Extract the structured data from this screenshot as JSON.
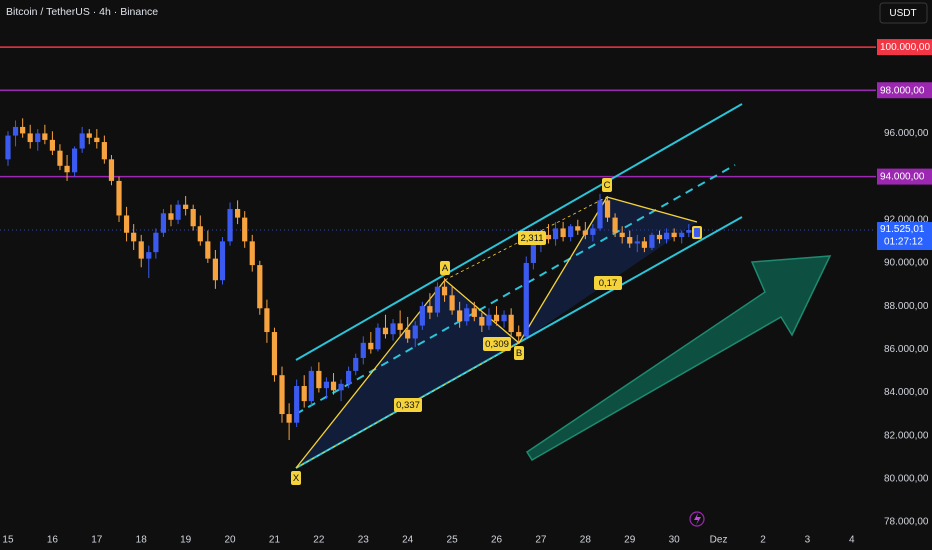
{
  "chart_data": {
    "type": "candlestick",
    "title": "Bitcoin / TetherUS · 4h · Binance",
    "currency_button": "USDT",
    "up_color": "#3b5bf0",
    "down_color": "#f7a440",
    "xlim": [
      14.82,
      34.41
    ],
    "ylim": [
      77630,
      102180
    ],
    "xticks": [
      15,
      16,
      17,
      18,
      19,
      20,
      21,
      22,
      23,
      24,
      25,
      26,
      27,
      28,
      29,
      30,
      {
        "value": 31,
        "label": "Dez"
      },
      {
        "value": 32,
        "label": "2"
      },
      {
        "value": 33,
        "label": "3"
      },
      {
        "value": 34,
        "label": "4"
      }
    ],
    "yticks": [
      {
        "value": 96000,
        "label": "96.000,00"
      },
      {
        "value": 92000,
        "label": "92.000,00"
      },
      {
        "value": 90000,
        "label": "90.000,00"
      },
      {
        "value": 88000,
        "label": "88.000,00"
      },
      {
        "value": 86000,
        "label": "86.000,00"
      },
      {
        "value": 84000,
        "label": "84.000,00"
      },
      {
        "value": 82000,
        "label": "82.000,00"
      },
      {
        "value": 80000,
        "label": "80.000,00"
      },
      {
        "value": 78000,
        "label": "78.000,00"
      }
    ],
    "grid": false,
    "levels": [
      {
        "value": 100000,
        "label": "100.000,00",
        "color": "#f23645"
      },
      {
        "value": 98000,
        "label": "98.000,00",
        "color": "#9c27b0"
      },
      {
        "value": 94000,
        "label": "94.000,00",
        "color": "#9c27b0"
      }
    ],
    "last_price": {
      "value": 91525.01,
      "label": "91.525,01"
    },
    "countdown": "01:27:12",
    "pattern_points": [
      "X",
      "A",
      "B",
      "C"
    ],
    "pattern_ratios": [
      "0,337",
      "0,309",
      "2,311",
      "0,17"
    ],
    "x": [
      15,
      15.17,
      15.33,
      15.5,
      15.67,
      15.83,
      16,
      16.17,
      16.33,
      16.5,
      16.67,
      16.83,
      17,
      17.17,
      17.33,
      17.5,
      17.67,
      17.83,
      18,
      18.17,
      18.33,
      18.5,
      18.67,
      18.83,
      19,
      19.17,
      19.33,
      19.5,
      19.67,
      19.83,
      20,
      20.17,
      20.33,
      20.5,
      20.67,
      20.83,
      21,
      21.17,
      21.33,
      21.5,
      21.67,
      21.83,
      22,
      22.17,
      22.33,
      22.5,
      22.67,
      22.83,
      23,
      23.17,
      23.33,
      23.5,
      23.67,
      23.83,
      24,
      24.17,
      24.33,
      24.5,
      24.67,
      24.83,
      25,
      25.17,
      25.33,
      25.5,
      25.67,
      25.83,
      26,
      26.17,
      26.33,
      26.5,
      26.67,
      26.83,
      27,
      27.17,
      27.33,
      27.5,
      27.67,
      27.83,
      28,
      28.17,
      28.33,
      28.5,
      28.67,
      28.83,
      29,
      29.17,
      29.33,
      29.5,
      29.67,
      29.83,
      30,
      30.17,
      30.33
    ],
    "candles": [
      [
        94800,
        96100,
        94500,
        95900
      ],
      [
        95900,
        96600,
        95400,
        96300
      ],
      [
        96300,
        96700,
        95800,
        96000
      ],
      [
        96000,
        96400,
        95300,
        95600
      ],
      [
        95600,
        96200,
        95200,
        96000
      ],
      [
        96000,
        96400,
        95500,
        95700
      ],
      [
        95700,
        96100,
        95000,
        95200
      ],
      [
        95200,
        95500,
        94300,
        94500
      ],
      [
        94500,
        95000,
        93800,
        94200
      ],
      [
        94200,
        95400,
        94000,
        95300
      ],
      [
        95300,
        96300,
        95100,
        96000
      ],
      [
        96000,
        96200,
        95500,
        95800
      ],
      [
        95800,
        96200,
        95300,
        95600
      ],
      [
        95600,
        95900,
        94600,
        94800
      ],
      [
        94800,
        95000,
        93600,
        93800
      ],
      [
        93800,
        94000,
        91900,
        92200
      ],
      [
        92200,
        92600,
        91000,
        91400
      ],
      [
        91400,
        91800,
        90600,
        91000
      ],
      [
        91000,
        91300,
        89800,
        90200
      ],
      [
        90200,
        90800,
        89300,
        90500
      ],
      [
        90500,
        91600,
        90200,
        91400
      ],
      [
        91400,
        92500,
        91200,
        92300
      ],
      [
        92300,
        92700,
        91700,
        92000
      ],
      [
        92000,
        92900,
        91800,
        92700
      ],
      [
        92700,
        93100,
        92200,
        92500
      ],
      [
        92500,
        92700,
        91500,
        91700
      ],
      [
        91700,
        92200,
        90800,
        91000
      ],
      [
        91000,
        91500,
        90000,
        90200
      ],
      [
        90200,
        90600,
        88800,
        89200
      ],
      [
        89200,
        91200,
        89000,
        91000
      ],
      [
        91000,
        92800,
        90800,
        92500
      ],
      [
        92500,
        92900,
        91800,
        92100
      ],
      [
        92100,
        92400,
        90700,
        91000
      ],
      [
        91000,
        91300,
        89600,
        89900
      ],
      [
        89900,
        90100,
        87600,
        87900
      ],
      [
        87900,
        88300,
        86300,
        86800
      ],
      [
        86800,
        87000,
        84500,
        84800
      ],
      [
        84800,
        85200,
        82600,
        83000
      ],
      [
        83000,
        83500,
        81800,
        82600
      ],
      [
        82600,
        84600,
        82400,
        84300
      ],
      [
        84300,
        84800,
        83300,
        83600
      ],
      [
        83600,
        85200,
        83400,
        85000
      ],
      [
        85000,
        85400,
        84000,
        84200
      ],
      [
        84200,
        84700,
        83700,
        84500
      ],
      [
        84500,
        84900,
        83900,
        84100
      ],
      [
        84100,
        84600,
        83600,
        84400
      ],
      [
        84400,
        85200,
        84200,
        85000
      ],
      [
        85000,
        85800,
        84800,
        85600
      ],
      [
        85600,
        86600,
        85300,
        86300
      ],
      [
        86300,
        86800,
        85800,
        86000
      ],
      [
        86000,
        87200,
        85900,
        87000
      ],
      [
        87000,
        87600,
        86500,
        86700
      ],
      [
        86700,
        87400,
        86400,
        87200
      ],
      [
        87200,
        87800,
        86600,
        86900
      ],
      [
        86900,
        87500,
        86300,
        86500
      ],
      [
        86500,
        87300,
        86100,
        87100
      ],
      [
        87100,
        88200,
        86900,
        88000
      ],
      [
        88000,
        88600,
        87400,
        87700
      ],
      [
        87700,
        89100,
        87500,
        88900
      ],
      [
        88900,
        89300,
        88200,
        88500
      ],
      [
        88500,
        88900,
        87600,
        87800
      ],
      [
        87800,
        88200,
        87000,
        87300
      ],
      [
        87300,
        88100,
        87100,
        87900
      ],
      [
        87900,
        88200,
        87300,
        87500
      ],
      [
        87500,
        87700,
        86800,
        87100
      ],
      [
        87100,
        87900,
        86900,
        87600
      ],
      [
        87600,
        88000,
        87100,
        87300
      ],
      [
        87300,
        87800,
        87000,
        87600
      ],
      [
        87600,
        87900,
        86600,
        86800
      ],
      [
        86800,
        87100,
        86300,
        86600
      ],
      [
        86600,
        90300,
        86500,
        90000
      ],
      [
        90000,
        91200,
        89700,
        90900
      ],
      [
        90900,
        91500,
        90500,
        91300
      ],
      [
        91300,
        91800,
        90900,
        91100
      ],
      [
        91100,
        91900,
        90800,
        91600
      ],
      [
        91600,
        91900,
        91000,
        91200
      ],
      [
        91200,
        91800,
        91000,
        91700
      ],
      [
        91700,
        92000,
        91300,
        91500
      ],
      [
        91500,
        91900,
        91100,
        91300
      ],
      [
        91300,
        91800,
        91000,
        91600
      ],
      [
        91600,
        93200,
        91500,
        92900
      ],
      [
        92900,
        93100,
        91900,
        92100
      ],
      [
        92100,
        92300,
        91200,
        91400
      ],
      [
        91400,
        91700,
        90900,
        91200
      ],
      [
        91200,
        91500,
        90700,
        90900
      ],
      [
        90900,
        91300,
        90500,
        91000
      ],
      [
        91000,
        91200,
        90500,
        90700
      ],
      [
        90700,
        91400,
        90600,
        91300
      ],
      [
        91300,
        91500,
        90900,
        91100
      ],
      [
        91100,
        91600,
        90900,
        91400
      ],
      [
        91400,
        91600,
        91000,
        91200
      ],
      [
        91200,
        91500,
        90900,
        91400
      ],
      [
        91400,
        91800,
        91200,
        91525.01
      ]
    ]
  }
}
